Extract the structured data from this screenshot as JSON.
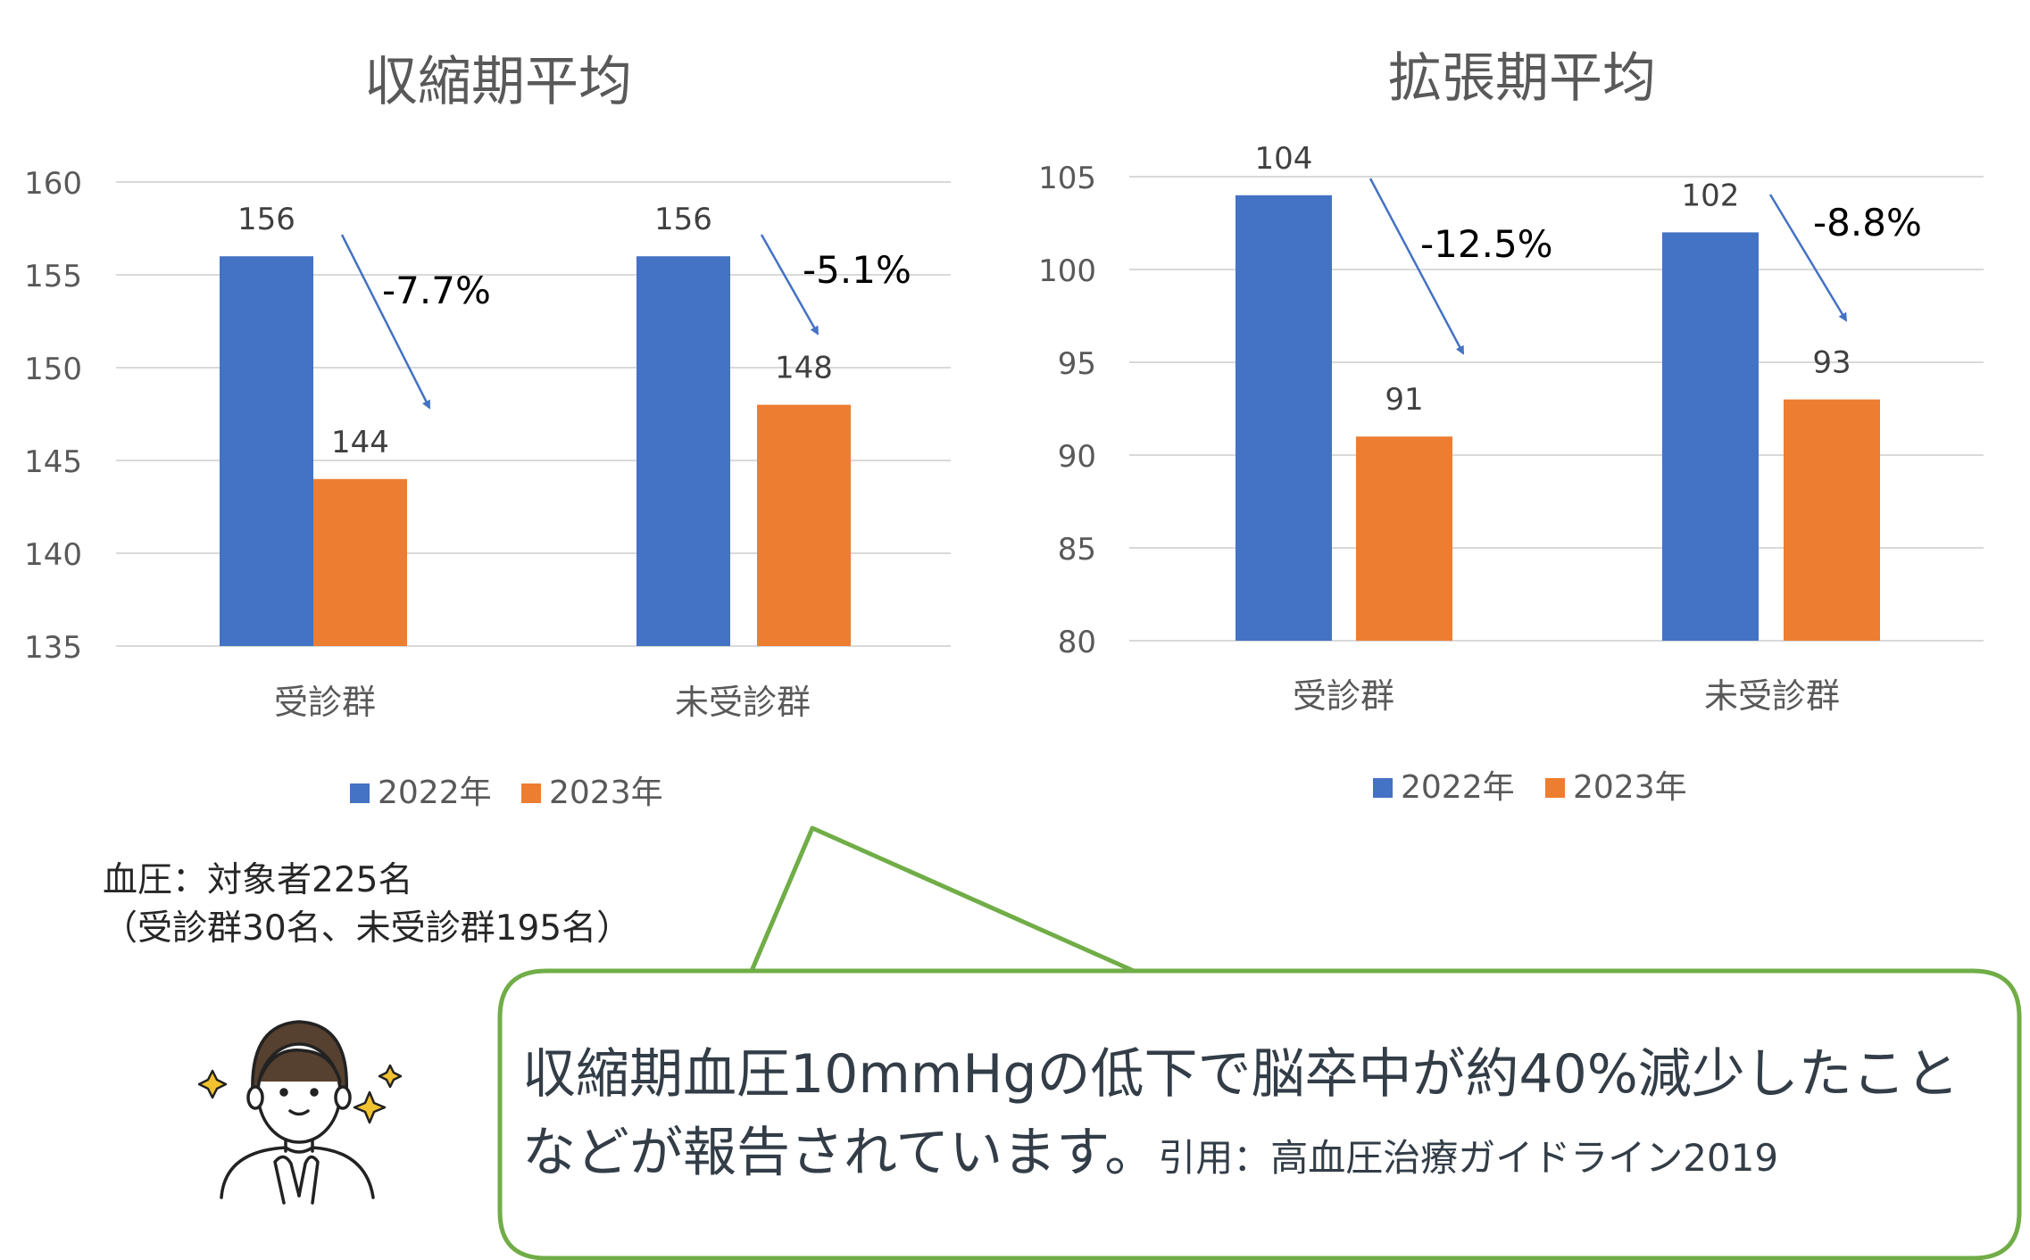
{
  "chart_data": [
    {
      "type": "bar",
      "title": "収縮期平均",
      "categories": [
        "受診群",
        "未受診群"
      ],
      "series": [
        {
          "name": "2022年",
          "values": [
            156,
            156
          ],
          "color": "#4472C4"
        },
        {
          "name": "2023年",
          "values": [
            144,
            148
          ],
          "color": "#ED7D31"
        }
      ],
      "ylim": [
        135,
        160
      ],
      "yticks": [
        "135",
        "140",
        "145",
        "150",
        "155",
        "160"
      ],
      "ytick_values": [
        135,
        140,
        145,
        150,
        155,
        160
      ],
      "change_labels": [
        "-7.7%",
        "-5.1%"
      ],
      "grid": true,
      "legend": "bottom"
    },
    {
      "type": "bar",
      "title": "拡張期平均",
      "categories": [
        "受診群",
        "未受診群"
      ],
      "series": [
        {
          "name": "2022年",
          "values": [
            104,
            102
          ],
          "color": "#4472C4"
        },
        {
          "name": "2023年",
          "values": [
            91,
            93
          ],
          "color": "#ED7D31"
        }
      ],
      "ylim": [
        80,
        105
      ],
      "yticks": [
        "80",
        "85",
        "90",
        "95",
        "100",
        "105"
      ],
      "ytick_values": [
        80,
        85,
        90,
        95,
        100,
        105
      ],
      "change_labels": [
        "-12.5%",
        "-8.8%"
      ],
      "grid": true,
      "legend": "bottom"
    }
  ],
  "note": {
    "line1": "血圧：対象者225名",
    "line2": "（受診群30名、未受診群195名）"
  },
  "callout": {
    "main": "収縮期血圧10mmHgの低下で脳卒中が約40%減少したことなどが報告されています。",
    "citation": "引用：高血圧治療ガイドライン2019",
    "border_color": "#70AD47"
  },
  "illustration": {
    "icon": "person-praying-hands-icon",
    "sparkle_icon": "sparkle-icon"
  }
}
